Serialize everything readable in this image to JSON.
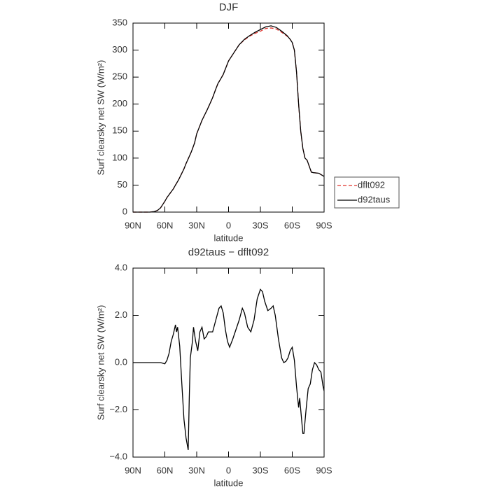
{
  "chart_data": [
    {
      "type": "line",
      "title": "DJF",
      "xlabel": "latitude",
      "ylabel": "Surf clearsky net SW (W/m²)",
      "xlim": [
        90,
        -90
      ],
      "xticks": [
        {
          "value": 90,
          "label": "90N"
        },
        {
          "value": 60,
          "label": "60N"
        },
        {
          "value": 30,
          "label": "30N"
        },
        0,
        {
          "value": -30,
          "label": "30S"
        },
        {
          "value": -60,
          "label": "60S"
        },
        {
          "value": -90,
          "label": "90S"
        }
      ],
      "ylim": [
        0,
        350
      ],
      "yticks": [
        0,
        50,
        100,
        150,
        200,
        250,
        300,
        350
      ],
      "legend": "right",
      "x": [
        90,
        80,
        74,
        70,
        67,
        64,
        62,
        60,
        58,
        55,
        52,
        50,
        47,
        45,
        42,
        40,
        37,
        35,
        32,
        30,
        27,
        25,
        22,
        20,
        17,
        15,
        12,
        10,
        7,
        5,
        2,
        0,
        -5,
        -10,
        -15,
        -20,
        -25,
        -30,
        -35,
        -40,
        -45,
        -50,
        -55,
        -58,
        -60,
        -62,
        -64,
        -66,
        -68,
        -70,
        -72,
        -74,
        -76,
        -78,
        -80,
        -85,
        -90
      ],
      "series": [
        {
          "name": "dflt092",
          "color": "#e0302a",
          "line_style": "dashed",
          "values": [
            0,
            0,
            0,
            1,
            3,
            8,
            14,
            20,
            27,
            35,
            43,
            50,
            60,
            68,
            80,
            90,
            103,
            112,
            128,
            145,
            160,
            170,
            182,
            190,
            203,
            212,
            228,
            238,
            248,
            255,
            270,
            280,
            295,
            310,
            319,
            326,
            331,
            335,
            340,
            341,
            339,
            333,
            326,
            320,
            314,
            300,
            260,
            200,
            150,
            118,
            100,
            96,
            85,
            74,
            73,
            72,
            66
          ]
        },
        {
          "name": "d92taus",
          "color": "#000000",
          "line_style": "solid",
          "values": [
            0,
            0,
            0,
            1,
            3,
            8,
            14,
            20,
            27,
            35,
            43,
            50,
            60,
            68,
            80,
            90,
            103,
            112,
            128,
            145,
            160,
            170,
            182,
            190,
            203,
            212,
            228,
            238,
            248,
            255,
            270,
            280,
            295,
            310,
            320,
            327,
            333,
            338,
            343,
            345,
            342,
            335,
            327,
            320,
            314,
            300,
            260,
            200,
            150,
            118,
            100,
            96,
            85,
            74,
            73,
            72,
            66
          ]
        }
      ]
    },
    {
      "type": "line",
      "title": "d92taus − dflt092",
      "xlabel": "latitude",
      "ylabel": "Surf clearsky net SW (W/m²)",
      "xlim": [
        90,
        -90
      ],
      "xticks": [
        {
          "value": 90,
          "label": "90N"
        },
        {
          "value": 60,
          "label": "60N"
        },
        {
          "value": 30,
          "label": "30N"
        },
        0,
        {
          "value": -30,
          "label": "30S"
        },
        {
          "value": -60,
          "label": "60S"
        },
        {
          "value": -90,
          "label": "90S"
        }
      ],
      "ylim": [
        -4,
        4
      ],
      "yticks": [
        {
          "value": -4,
          "label": "−4.0"
        },
        {
          "value": -2,
          "label": "−2.0"
        },
        {
          "value": 0,
          "label": "0.0"
        },
        {
          "value": 2,
          "label": "2.0"
        },
        {
          "value": 4,
          "label": "4.0"
        }
      ],
      "x": [
        90,
        80,
        70,
        64,
        60,
        58,
        56,
        54,
        52,
        50,
        49,
        48,
        46,
        44,
        42,
        40,
        38,
        37,
        36,
        34,
        33,
        31,
        29,
        27,
        25,
        23,
        21,
        19,
        15,
        12,
        9,
        7,
        5,
        3,
        1,
        -1,
        -4,
        -7,
        -10,
        -13,
        -15,
        -18,
        -21,
        -24,
        -27,
        -30,
        -32,
        -34,
        -37,
        -40,
        -42,
        -44,
        -47,
        -50,
        -52,
        -54,
        -56,
        -58,
        -60,
        -62,
        -64,
        -66,
        -67,
        -69,
        -70,
        -71,
        -73,
        -75,
        -77,
        -79,
        -81,
        -83,
        -85,
        -87,
        -89,
        -90
      ],
      "series": [
        {
          "color": "#000000",
          "line_style": "solid",
          "values": [
            0,
            0,
            0,
            0,
            -0.05,
            0.1,
            0.4,
            0.9,
            1.2,
            1.6,
            1.3,
            1.5,
            0.7,
            -0.9,
            -2.4,
            -3.2,
            -3.7,
            -1.5,
            0.2,
            0.9,
            1.5,
            0.9,
            0.5,
            1.3,
            1.5,
            1.0,
            1.1,
            1.3,
            1.3,
            1.8,
            2.3,
            2.4,
            2.1,
            1.4,
            0.9,
            0.65,
            1.0,
            1.4,
            1.8,
            2.3,
            2.1,
            1.5,
            1.3,
            1.8,
            2.7,
            3.1,
            3.0,
            2.6,
            2.2,
            2.3,
            2.4,
            2.0,
            1.0,
            0.2,
            0.0,
            0.05,
            0.2,
            0.5,
            0.65,
            0.1,
            -1.0,
            -1.9,
            -1.5,
            -2.5,
            -3.0,
            -3.0,
            -2.0,
            -1.1,
            -0.9,
            -0.3,
            0.0,
            -0.1,
            -0.3,
            -0.4,
            -1.0,
            -1.2
          ]
        }
      ]
    }
  ]
}
